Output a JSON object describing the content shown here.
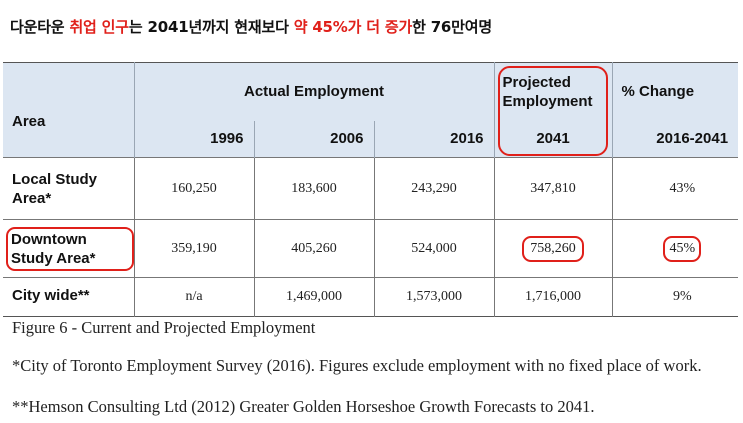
{
  "headline": {
    "part1": "다운타운 ",
    "part2": "취업 인구",
    "part3": "는 2041년까지 현재보다 ",
    "part4": "약 45%가 더 증가",
    "part5": "한 76만여명"
  },
  "table": {
    "area_header": "Area",
    "actual_header": "Actual Employment",
    "projected_header": "Projected Employment",
    "change_header": "% Change",
    "years": [
      "1996",
      "2006",
      "2016",
      "2041",
      "2016-2041"
    ],
    "rows": [
      {
        "area": "Local Study Area*",
        "values": [
          "160,250",
          "183,600",
          "243,290",
          "347,810",
          "43%"
        ]
      },
      {
        "area": "Downtown Study Area*",
        "values": [
          "359,190",
          "405,260",
          "524,000",
          "758,260",
          "45%"
        ]
      },
      {
        "area": "City wide**",
        "values": [
          "n/a",
          "1,469,000",
          "1,573,000",
          "1,716,000",
          "9%"
        ]
      }
    ]
  },
  "caption": "Figure 6 - Current and Projected Employment",
  "footnotes": [
    "*City of Toronto Employment Survey (2016). Figures exclude employment with no fixed place of work.",
    "**Hemson Consulting Ltd (2012) Greater Golden Horseshoe Growth Forecasts to 2041."
  ],
  "colors": {
    "header_bg": "#dce6f2",
    "highlight": "#e0201a"
  }
}
